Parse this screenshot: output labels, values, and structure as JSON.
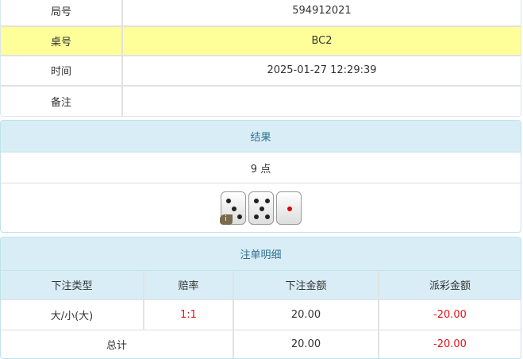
{
  "info": [
    {
      "label": "局号",
      "value": "594912021"
    },
    {
      "label": "桌号",
      "value": "BC2"
    },
    {
      "label": "时间",
      "value": "2025-01-27 12:29:39"
    },
    {
      "label": "备注",
      "value": ""
    }
  ],
  "result": {
    "title": "结果",
    "points": "9 点",
    "dice": [
      3,
      5,
      1
    ],
    "info_badge": "i"
  },
  "bets": {
    "title": "注单明细",
    "headers": [
      "下注类型",
      "赔率",
      "下注金额",
      "派彩金额"
    ],
    "rows": [
      {
        "type": "大/小(大)",
        "odds": "1:1",
        "amount": "20.00",
        "payout": "-20.00"
      }
    ],
    "total": {
      "label": "总计",
      "amount": "20.00",
      "payout": "-20.00"
    }
  },
  "colors": {
    "highlight": "#ffff99",
    "header": "#d9edf7",
    "negative": "#e4121b"
  }
}
